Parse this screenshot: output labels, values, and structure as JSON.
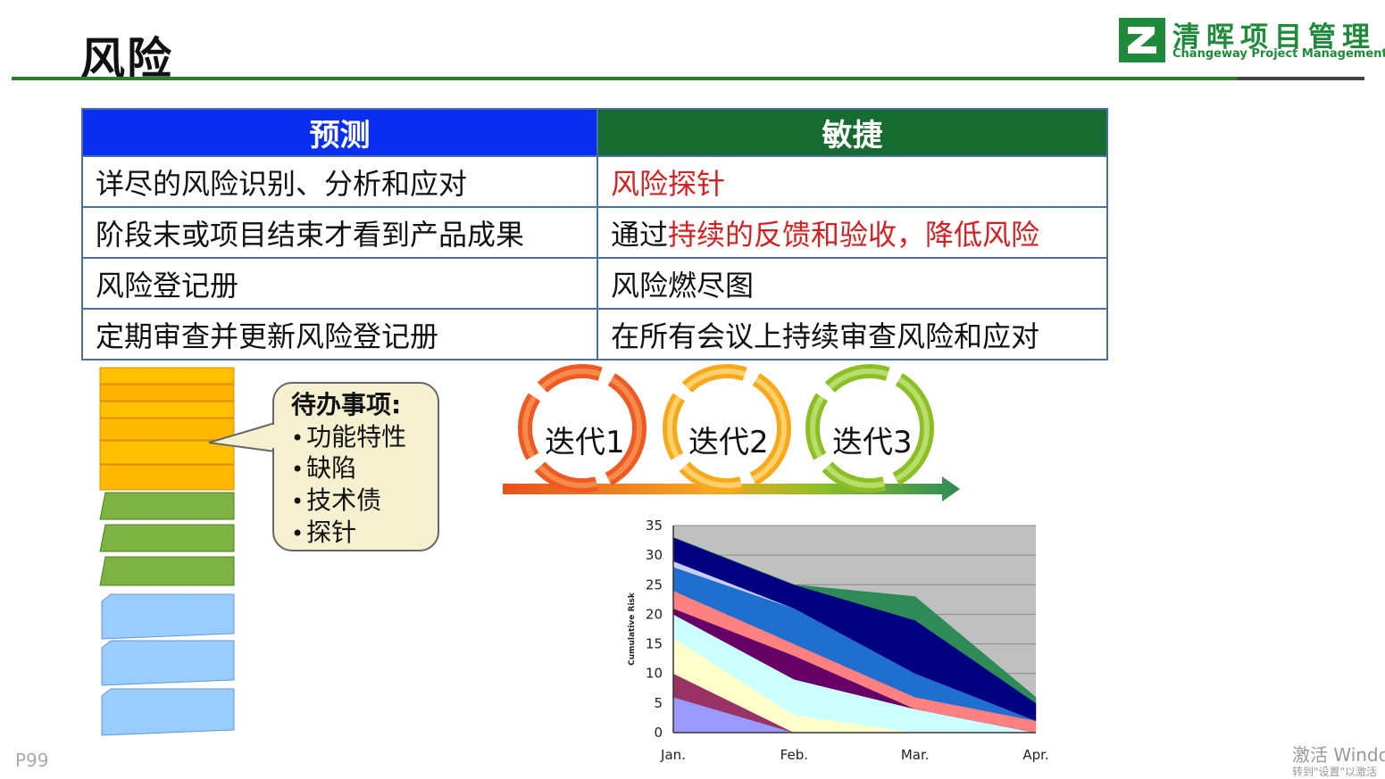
{
  "slide": {
    "title": "风险",
    "page_number": "P99"
  },
  "logo": {
    "name_cn": "清晖项目管理",
    "name_en": "Changeway Project Management",
    "colors": {
      "green": "#1e8a3a"
    }
  },
  "table": {
    "headers": {
      "predictive": "预测",
      "agile": "敏捷"
    },
    "header_colors": {
      "predictive": "#0a2ef0",
      "agile": "#156b30"
    },
    "rows": {
      "r1": {
        "predictive": "详尽的风险识别、分析和应对",
        "agile_a": "风险探针",
        "agile_b": "",
        "agile_c": ""
      },
      "r2": {
        "predictive": "阶段末或项目结束才看到产品成果",
        "agile_a": "通过",
        "agile_b": "持续的反馈和验收，降低风险",
        "agile_c": ""
      },
      "r3": {
        "predictive": "风险登记册",
        "agile_a": "风险燃尽图"
      },
      "r4": {
        "predictive": "定期审查并更新风险登记册",
        "agile_a": "在所有会议上持续审查风险和应对"
      }
    }
  },
  "backlog": {
    "title": "待办事项:",
    "items": {
      "i1": "功能特性",
      "i2": "缺陷",
      "i3": "技术债",
      "i4": "探针"
    }
  },
  "iterations": {
    "it1": "迭代1",
    "it2": "迭代2",
    "it3": "迭代3"
  },
  "chart_data": {
    "type": "area",
    "stacked": true,
    "categories": [
      "Jan.",
      "Feb.",
      "Mar.",
      "Apr."
    ],
    "ylabel": "Cumulative Risk",
    "xlabel": "",
    "ylim": [
      0,
      35
    ],
    "yticks": [
      0,
      5,
      10,
      15,
      20,
      25,
      30,
      35
    ],
    "grid": true,
    "series": [
      {
        "values": [
          6,
          0,
          0,
          0
        ],
        "color": "#9999ff"
      },
      {
        "values": [
          4,
          0,
          0,
          0
        ],
        "color": "#993366"
      },
      {
        "values": [
          6,
          3,
          0,
          0
        ],
        "color": "#ffffcc"
      },
      {
        "values": [
          4,
          6,
          4,
          0
        ],
        "color": "#ccffff"
      },
      {
        "values": [
          1,
          4,
          0,
          0
        ],
        "color": "#660066"
      },
      {
        "values": [
          3,
          2,
          2,
          2
        ],
        "color": "#ff8080"
      },
      {
        "values": [
          4,
          6,
          4,
          0
        ],
        "color": "#1f6fd0"
      },
      {
        "values": [
          1,
          0,
          0,
          0
        ],
        "color": "#ccccff"
      },
      {
        "values": [
          4,
          4,
          9,
          3
        ],
        "color": "#000080"
      },
      {
        "values": [
          0,
          0,
          4,
          1
        ],
        "color": "#2e8b57"
      }
    ]
  },
  "watermark": {
    "line1": "激活 Windc",
    "line2": "转到\"设置\"以激活"
  }
}
